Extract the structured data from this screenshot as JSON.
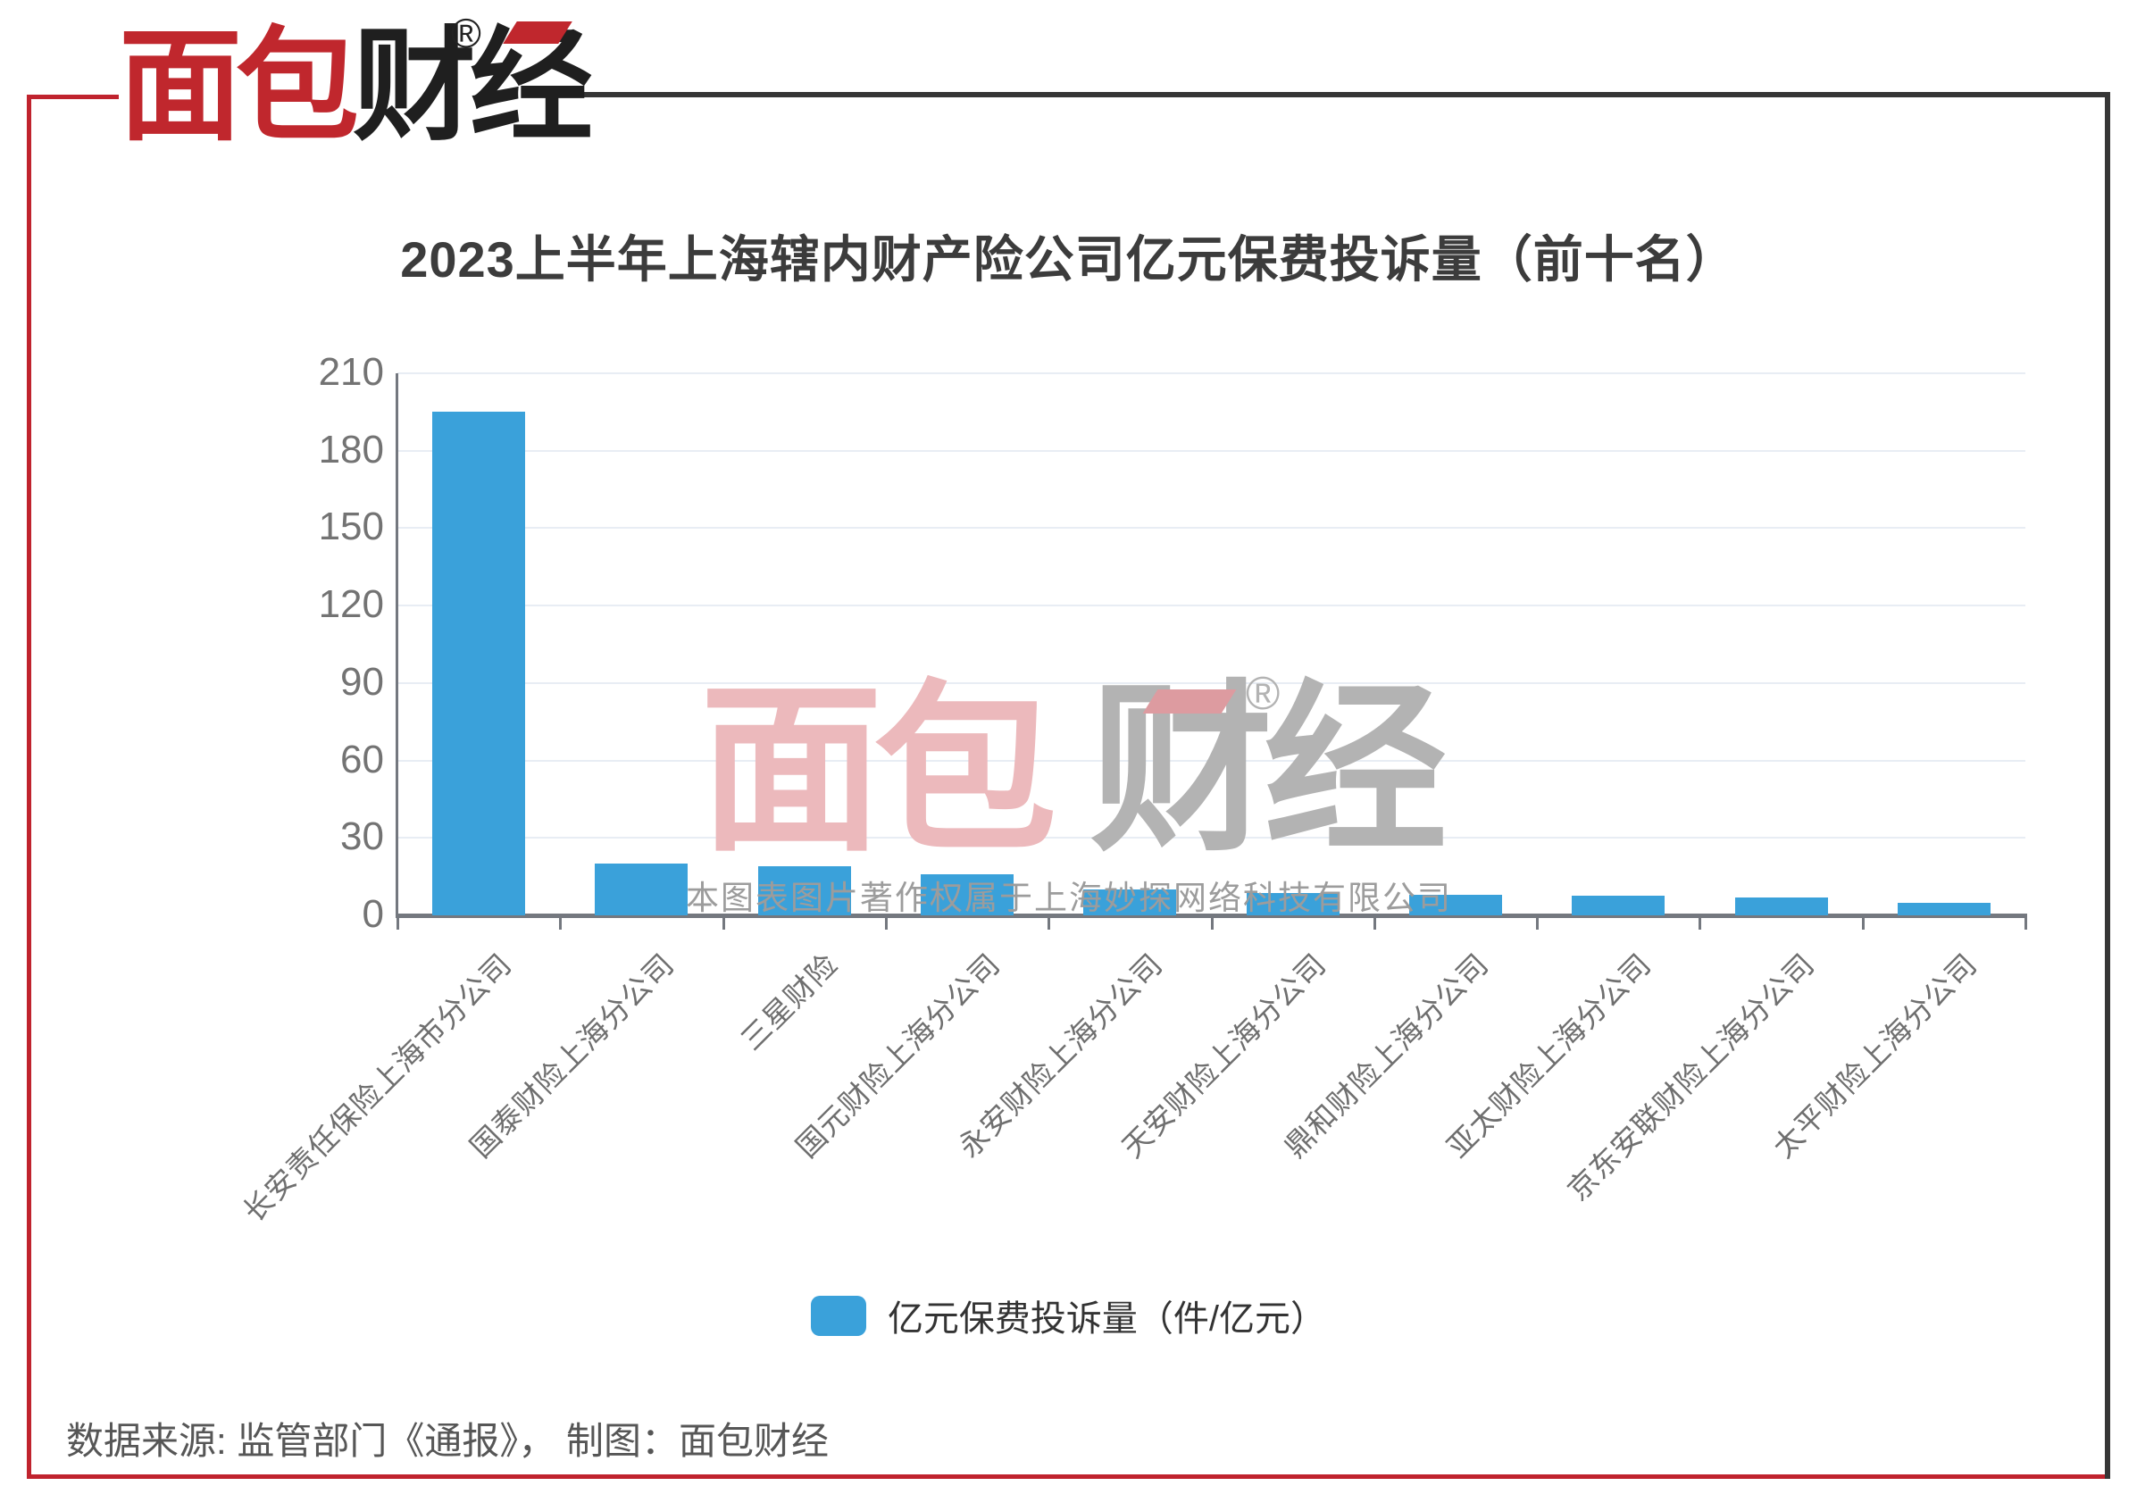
{
  "brand": {
    "logo_red_text": "面包",
    "logo_black_text": "财经",
    "registered_mark": "®"
  },
  "title": "2023上半年上海辖内财产险公司亿元保费投诉量（前十名）",
  "chart_data": {
    "type": "bar",
    "title": "2023上半年上海辖内财产险公司亿元保费投诉量（前十名）",
    "categories": [
      "长安责任保险上海市分公司",
      "国泰财险上海分公司",
      "三星财险",
      "国元财险上海分公司",
      "永安财险上海分公司",
      "天安财险上海分公司",
      "鼎和财险上海分公司",
      "亚太财险上海分公司",
      "京东安联财险上海分公司",
      "太平财险上海分公司"
    ],
    "values": [
      195,
      20,
      19,
      16,
      10,
      8.5,
      8,
      7.5,
      7,
      5
    ],
    "series_name": "亿元保费投诉量（件/亿元）",
    "xlabel": "",
    "ylabel": "",
    "ylim": [
      0,
      210
    ],
    "yticks": [
      0,
      30,
      60,
      90,
      120,
      150,
      180,
      210
    ],
    "grid": true,
    "legend_position": "bottom",
    "bar_color": "#3aa1da"
  },
  "legend": {
    "label": "亿元保费投诉量（件/亿元）"
  },
  "watermark": {
    "logo_red_text": "面包",
    "logo_gray_text": "财经",
    "registered_mark": "®",
    "caption": "本图表图片著作权属于上海妙探网络科技有限公司"
  },
  "footer": {
    "source_line": "数据来源: 监管部门《通报》， 制图：面包财经"
  },
  "colors": {
    "accent_red": "#c0232e",
    "logo_red": "#c0272d",
    "logo_black": "#1f1f1f",
    "frame_dark": "#363636",
    "bar_blue": "#3aa1da",
    "grid_line": "#e8edf4",
    "axis_line": "#74787f",
    "watermark_pink": "#ecb9bc",
    "watermark_slant_red": "#dd9ba0",
    "watermark_gray": "#b3b3b3"
  }
}
